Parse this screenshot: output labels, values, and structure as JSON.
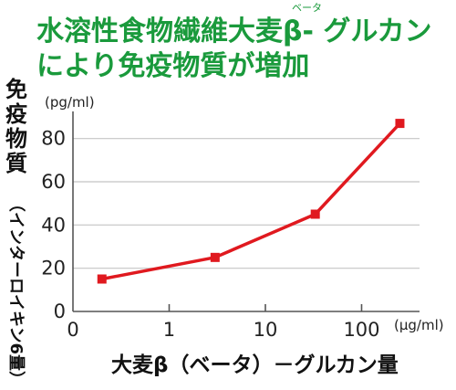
{
  "chart_data": {
    "type": "line",
    "title_line1": "水溶性食物繊維大麦β- グルカン",
    "title_line2": "により免疫物質が増加",
    "title_ruby": "ベータ",
    "ylabel_main": "免疫物質",
    "ylabel_sub": "（インターロイキン6量）",
    "yunit": "(pg/ml)",
    "xlabel": "大麦β（ベータ）－グルカン量",
    "xunit": "(μg/ml)",
    "x_scale": "log",
    "xlim": [
      0.1,
      400
    ],
    "ylim": [
      0,
      90
    ],
    "x_ticks": [
      0.1,
      1,
      10,
      100
    ],
    "x_tick_labels": [
      "0",
      "1",
      "10",
      "100"
    ],
    "y_ticks": [
      0,
      20,
      40,
      60,
      80
    ],
    "y_tick_labels": [
      "0",
      "20",
      "40",
      "60",
      "80"
    ],
    "grid": true,
    "series": [
      {
        "x": [
          0.2,
          3,
          33,
          250
        ],
        "y": [
          15,
          25,
          45,
          87
        ],
        "color": "#e0191f"
      }
    ]
  }
}
